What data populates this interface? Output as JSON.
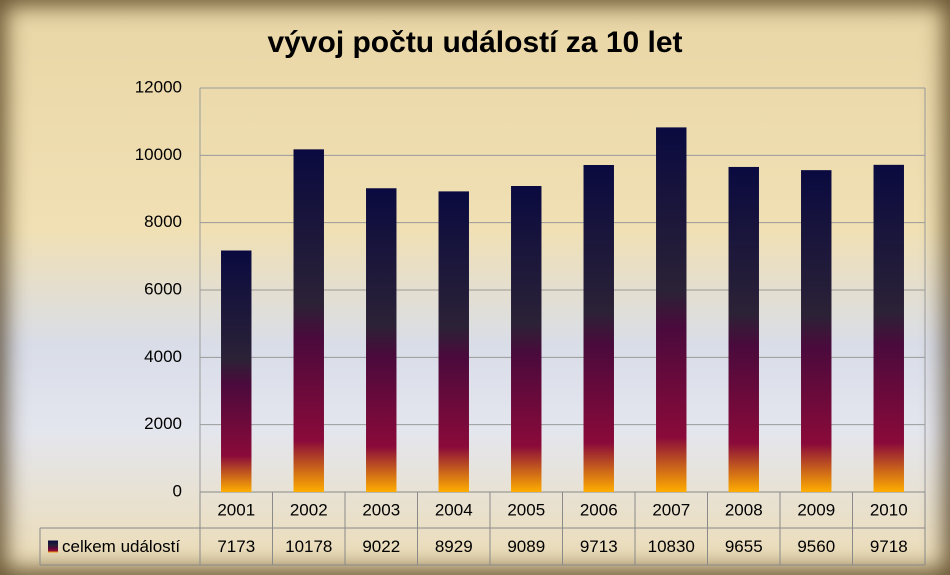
{
  "chart_data": {
    "type": "bar",
    "title": "vývoj počtu událostí za 10 let",
    "categories": [
      "2001",
      "2002",
      "2003",
      "2004",
      "2005",
      "2006",
      "2007",
      "2008",
      "2009",
      "2010"
    ],
    "series": [
      {
        "name": "celkem událostí",
        "values": [
          7173,
          10178,
          9022,
          8929,
          9089,
          9713,
          10830,
          9655,
          9560,
          9718
        ]
      }
    ],
    "ylim": [
      0,
      12000
    ],
    "yticks": [
      0,
      2000,
      4000,
      6000,
      8000,
      10000,
      12000
    ],
    "grid": true,
    "data_table": true
  }
}
